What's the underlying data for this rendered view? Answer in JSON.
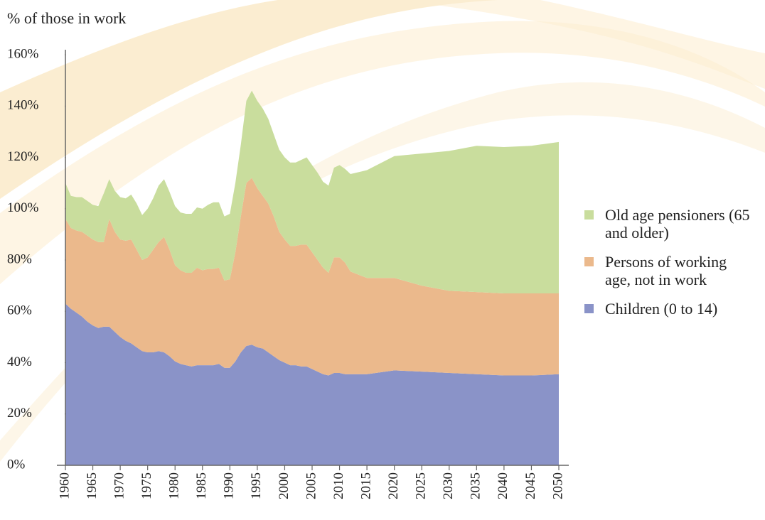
{
  "chart_data": {
    "type": "stacked_area",
    "y_label": "% of those in work",
    "x": [
      1960,
      1961,
      1962,
      1963,
      1964,
      1965,
      1966,
      1967,
      1968,
      1969,
      1970,
      1971,
      1972,
      1973,
      1974,
      1975,
      1976,
      1977,
      1978,
      1979,
      1980,
      1981,
      1982,
      1983,
      1984,
      1985,
      1986,
      1987,
      1988,
      1989,
      1990,
      1991,
      1992,
      1993,
      1994,
      1995,
      1996,
      1997,
      1998,
      1999,
      2000,
      2001,
      2002,
      2003,
      2004,
      2005,
      2006,
      2007,
      2008,
      2009,
      2010,
      2011,
      2012,
      2015,
      2020,
      2025,
      2030,
      2035,
      2040,
      2045,
      2050
    ],
    "series": [
      {
        "name": "Children (0 to 14)",
        "color": "#8a93c8",
        "values": [
          63,
          61,
          59.5,
          58,
          56,
          54.5,
          53.5,
          54,
          54,
          52,
          50,
          48.5,
          47.5,
          46,
          44.5,
          44,
          44,
          44.5,
          44,
          42.5,
          40.5,
          39.5,
          39,
          38.5,
          39,
          39,
          39,
          39,
          39.5,
          38,
          38,
          40.5,
          44,
          46.5,
          47,
          46,
          45.5,
          44,
          42.5,
          41,
          40,
          39,
          39,
          38.5,
          38.5,
          37.5,
          36.5,
          35.5,
          35,
          36,
          36,
          35.5,
          35.5,
          35.5,
          37,
          36.5,
          36,
          35.5,
          35,
          35,
          35.5
        ]
      },
      {
        "name": "Persons of working age, not in work",
        "color": "#ebb98c",
        "values": [
          33,
          31.5,
          32,
          33,
          33.5,
          33.5,
          33.5,
          33,
          42,
          39,
          38,
          39,
          40.5,
          38,
          35.5,
          37,
          40,
          42.5,
          45,
          41.5,
          37.5,
          36.5,
          36,
          36.5,
          38,
          37,
          37.5,
          37.5,
          37.5,
          34,
          34.5,
          42.5,
          53,
          63.5,
          65,
          62,
          59.5,
          58,
          54.5,
          50,
          48,
          46.5,
          46.5,
          47.5,
          47.5,
          45.5,
          43.5,
          41.5,
          40,
          45,
          45,
          43.5,
          40,
          37.5,
          36,
          33.5,
          32,
          32,
          32,
          32,
          31.5
        ]
      },
      {
        "name": "Old age pensioners (65 and older)",
        "color": "#c9dd9d",
        "values": [
          14,
          12.5,
          13,
          13.5,
          13.5,
          13.5,
          14,
          19,
          15.5,
          16,
          16.5,
          16.5,
          17.5,
          18,
          17.5,
          19,
          20,
          22,
          22.5,
          22.5,
          23,
          22.5,
          23,
          23,
          23.5,
          24,
          25,
          26,
          25.5,
          25,
          25.5,
          27,
          28,
          32,
          34,
          34,
          34,
          33,
          32,
          32,
          32,
          32.5,
          32.5,
          33,
          34,
          34,
          34,
          33.5,
          34,
          35,
          36,
          36.5,
          38,
          42,
          47.5,
          51.5,
          54.5,
          57,
          57,
          57.5,
          59
        ]
      }
    ],
    "xlim": [
      1960,
      2050
    ],
    "xticks": [
      1960,
      1965,
      1970,
      1975,
      1980,
      1985,
      1990,
      1995,
      2000,
      2005,
      2010,
      2015,
      2020,
      2025,
      2030,
      2035,
      2040,
      2045,
      2050
    ],
    "ylim": [
      0,
      160
    ],
    "yticks": [
      {
        "value": 0,
        "label": "0%"
      },
      {
        "value": 20,
        "label": "20%"
      },
      {
        "value": 40,
        "label": "40%"
      },
      {
        "value": 60,
        "label": "60%"
      },
      {
        "value": 80,
        "label": "80%"
      },
      {
        "value": 100,
        "label": "100%"
      },
      {
        "value": 120,
        "label": "120%"
      },
      {
        "value": 140,
        "label": "140%"
      },
      {
        "value": 160,
        "label": "160%"
      }
    ]
  }
}
